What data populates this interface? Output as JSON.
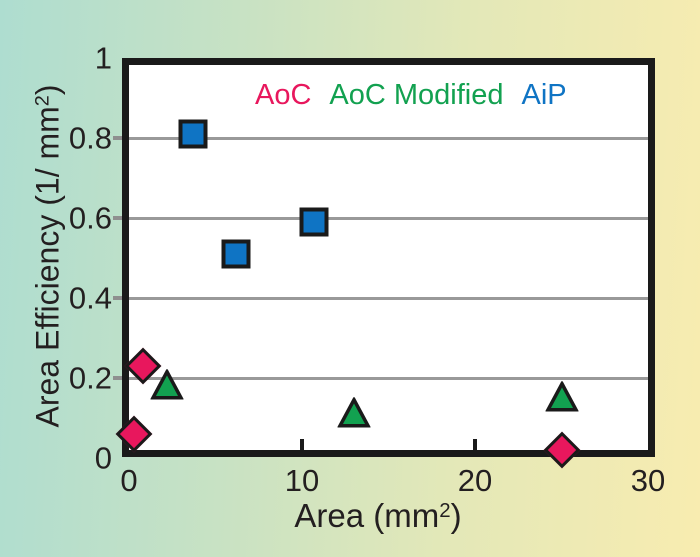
{
  "figure": {
    "background_gradient": [
      "#aeddd0",
      "#c9e2c3",
      "#e3e8b8",
      "#f8ecb0"
    ],
    "plot_background": "#ffffff",
    "border_color": "#1a1a1a",
    "text_color": "#231f20"
  },
  "chart_data": {
    "type": "scatter",
    "title": "",
    "xlabel": "Area (mm2)",
    "xlabel_parts": [
      {
        "t": "Area (mm"
      },
      {
        "t": "2",
        "sup": true
      },
      {
        "t": ")"
      }
    ],
    "ylabel": "Area Efficiency (1/ mm2)",
    "ylabel_parts": [
      {
        "t": "Area Efficiency  (1/ mm"
      },
      {
        "t": "2",
        "sup": true
      },
      {
        "t": ")"
      }
    ],
    "xlim": [
      0,
      30
    ],
    "ylim": [
      0,
      1
    ],
    "grid": true,
    "grid_color": "#999999",
    "gridlines_y": [
      0.2,
      0.4,
      0.6,
      0.8
    ],
    "x_ticks": [
      {
        "v": 0,
        "label": "0"
      },
      {
        "v": 10,
        "label": "10"
      },
      {
        "v": 20,
        "label": "20"
      },
      {
        "v": 30,
        "label": "30"
      }
    ],
    "y_ticks": [
      {
        "v": 1,
        "label": "1"
      },
      {
        "v": 0.8,
        "label": "0.8"
      },
      {
        "v": 0.6,
        "label": "0.6"
      },
      {
        "v": 0.4,
        "label": "0.4"
      },
      {
        "v": 0.2,
        "label": "0.2"
      },
      {
        "v": 0,
        "label": "0"
      }
    ],
    "x_inner_tick_marks": [
      10,
      20
    ],
    "y_outer_tick_marks": [
      0.2,
      0.4,
      0.6,
      0.8
    ],
    "legend_position": "top-inside",
    "legend": [
      {
        "label": "AoC",
        "color": "#e8175d"
      },
      {
        "label": "AoC Modified",
        "color": "#12a150"
      },
      {
        "label": "AiP",
        "color": "#0f74c4"
      }
    ],
    "series": [
      {
        "name": "AoC",
        "marker": "diamond",
        "color": "#e8175d",
        "points": [
          {
            "x": 0.3,
            "y": 0.06
          },
          {
            "x": 0.8,
            "y": 0.23
          },
          {
            "x": 25,
            "y": 0.02
          }
        ]
      },
      {
        "name": "AoC Modified",
        "marker": "triangle",
        "color": "#12a150",
        "points": [
          {
            "x": 2.2,
            "y": 0.18
          },
          {
            "x": 13,
            "y": 0.11
          },
          {
            "x": 25,
            "y": 0.15
          }
        ]
      },
      {
        "name": "AiP",
        "marker": "square",
        "color": "#0f74c4",
        "points": [
          {
            "x": 3.7,
            "y": 0.81
          },
          {
            "x": 6.2,
            "y": 0.51
          },
          {
            "x": 10.7,
            "y": 0.59
          }
        ]
      }
    ]
  }
}
